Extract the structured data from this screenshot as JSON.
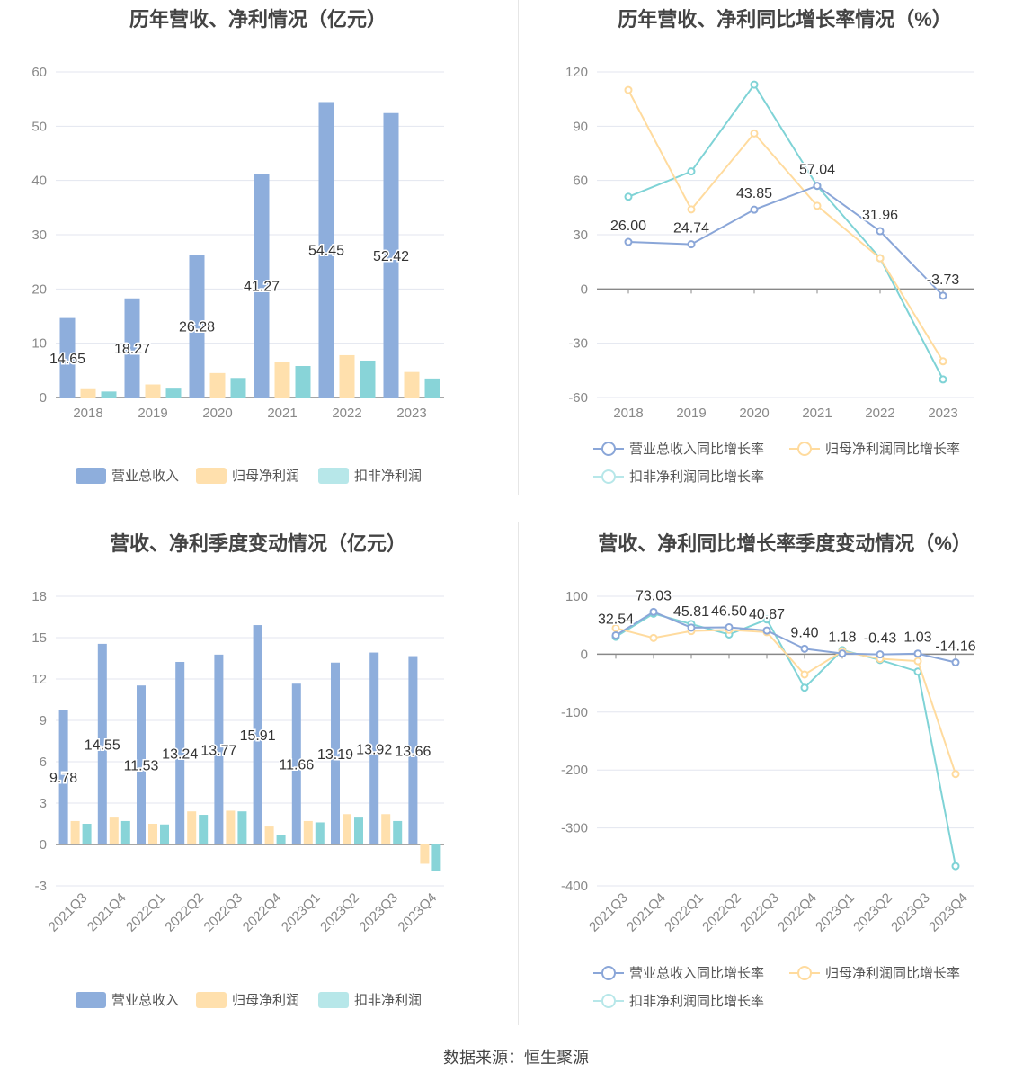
{
  "charts": {
    "annual_revenue_profit": {
      "title": "历年营收、净利情况（亿元）",
      "legend": [
        "营业总收入",
        "归母净利润",
        "扣非净利润"
      ]
    },
    "annual_growth": {
      "title": "历年营收、净利同比增长率情况（%）",
      "legend": [
        "营业总收入同比增长率",
        "归母净利润同比增长率",
        "扣非净利润同比增长率"
      ]
    },
    "quarterly_revenue_profit": {
      "title": "营收、净利季度变动情况（亿元）",
      "legend": [
        "营业总收入",
        "归母净利润",
        "扣非净利润"
      ]
    },
    "quarterly_growth": {
      "title": "营收、净利同比增长率季度变动情况（%）",
      "legend": [
        "营业总收入同比增长率",
        "归母净利润同比增长率",
        "扣非净利润同比增长率"
      ]
    }
  },
  "colors": {
    "revenue": "#8eaedc",
    "net_profit": "#ffe0ad",
    "deducted_profit": "#88d4d8",
    "revenue_line": "#8aa6d8",
    "net_profit_line": "#ffdb9e",
    "deducted_line": "#7fd3d6"
  },
  "source": "数据来源：恒生聚源",
  "chart_data": [
    {
      "type": "bar",
      "title": "历年营收、净利情况（亿元）",
      "categories": [
        "2018",
        "2019",
        "2020",
        "2021",
        "2022",
        "2023"
      ],
      "ylim": [
        0,
        60
      ],
      "yticks": [
        0,
        10,
        20,
        30,
        40,
        50,
        60
      ],
      "series": [
        {
          "name": "营业总收入",
          "values": [
            14.65,
            18.27,
            26.28,
            41.27,
            54.45,
            52.42
          ],
          "labels": [
            "14.65",
            "18.27",
            "26.28",
            "41.27",
            "54.45",
            "52.42"
          ]
        },
        {
          "name": "归母净利润",
          "values": [
            1.7,
            2.4,
            4.5,
            6.5,
            7.8,
            4.7
          ]
        },
        {
          "name": "扣非净利润",
          "values": [
            1.1,
            1.8,
            3.6,
            5.8,
            6.8,
            3.5
          ]
        }
      ],
      "legend_position": "bottom"
    },
    {
      "type": "line",
      "title": "历年营收、净利同比增长率情况（%）",
      "categories": [
        "2018",
        "2019",
        "2020",
        "2021",
        "2022",
        "2023"
      ],
      "ylim": [
        -60,
        120
      ],
      "yticks": [
        -60,
        -30,
        0,
        30,
        60,
        90,
        120
      ],
      "series": [
        {
          "name": "营业总收入同比增长率",
          "values": [
            26.0,
            24.74,
            43.85,
            57.04,
            31.96,
            -3.73
          ],
          "labels": [
            "26.00",
            "24.74",
            "43.85",
            "57.04",
            "31.96",
            "-3.73"
          ]
        },
        {
          "name": "归母净利润同比增长率",
          "values": [
            110,
            44,
            86,
            46,
            17,
            -40
          ]
        },
        {
          "name": "扣非净利润同比增长率",
          "values": [
            51,
            65,
            113,
            57,
            17,
            -50
          ]
        }
      ],
      "legend_position": "bottom"
    },
    {
      "type": "bar",
      "title": "营收、净利季度变动情况（亿元）",
      "categories": [
        "2021Q3",
        "2021Q4",
        "2022Q1",
        "2022Q2",
        "2022Q3",
        "2022Q4",
        "2023Q1",
        "2023Q2",
        "2023Q3",
        "2023Q4"
      ],
      "ylim": [
        -3,
        18
      ],
      "yticks": [
        -3,
        0,
        3,
        6,
        9,
        12,
        15,
        18
      ],
      "series": [
        {
          "name": "营业总收入",
          "values": [
            9.78,
            14.55,
            11.53,
            13.24,
            13.77,
            15.91,
            11.66,
            13.19,
            13.92,
            13.66
          ],
          "labels": [
            "9.78",
            "14.55",
            "11.53",
            "13.24",
            "13.77",
            "15.91",
            "11.66",
            "13.19",
            "13.92",
            "13.66"
          ]
        },
        {
          "name": "归母净利润",
          "values": [
            1.7,
            1.95,
            1.5,
            2.4,
            2.45,
            1.3,
            1.7,
            2.2,
            2.2,
            -1.4
          ]
        },
        {
          "name": "扣非净利润",
          "values": [
            1.5,
            1.7,
            1.45,
            2.15,
            2.4,
            0.7,
            1.6,
            1.95,
            1.7,
            -1.9
          ]
        }
      ],
      "legend_position": "bottom"
    },
    {
      "type": "line",
      "title": "营收、净利同比增长率季度变动情况（%）",
      "categories": [
        "2021Q3",
        "2021Q4",
        "2022Q1",
        "2022Q2",
        "2022Q3",
        "2022Q4",
        "2023Q1",
        "2023Q2",
        "2023Q3",
        "2023Q4"
      ],
      "ylim": [
        -400,
        100
      ],
      "yticks": [
        -400,
        -300,
        -200,
        -100,
        0,
        100
      ],
      "series": [
        {
          "name": "营业总收入同比增长率",
          "values": [
            32.54,
            73.03,
            45.81,
            46.5,
            40.87,
            9.4,
            1.18,
            -0.43,
            1.03,
            -14.16
          ],
          "labels": [
            "32.54",
            "73.03",
            "45.81",
            "46.50",
            "40.87",
            "9.40",
            "1.18",
            "-0.43",
            "1.03",
            "-14.16"
          ]
        },
        {
          "name": "归母净利润同比增长率",
          "values": [
            45,
            28,
            40,
            42,
            38,
            -35,
            5,
            -8,
            -12,
            -207
          ]
        },
        {
          "name": "扣非净利润同比增长率",
          "values": [
            30,
            70,
            52,
            34,
            60,
            -58,
            7,
            -10,
            -30,
            -366
          ]
        }
      ],
      "legend_position": "bottom"
    }
  ]
}
